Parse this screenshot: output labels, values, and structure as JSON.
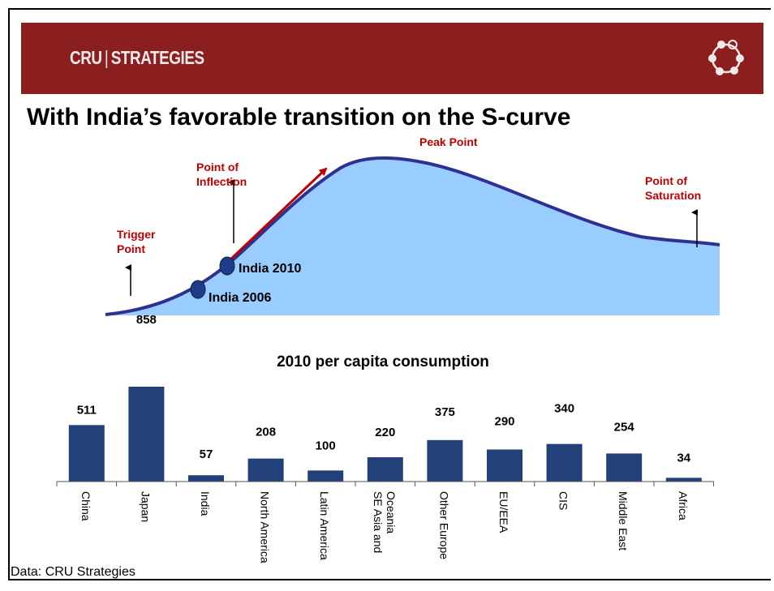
{
  "header": {
    "brand_left": "CRU",
    "brand_separator": "|",
    "brand_right": "STRATEGIES",
    "accent_color": "#8b1e1e",
    "icon": "network-circle-icon"
  },
  "title": "With India’s favorable transition on the S-curve",
  "scurve": {
    "labels": {
      "peak": "Peak Point",
      "inflection_line1": "Point of",
      "inflection_line2": "Inflection",
      "trigger_line1": "Trigger",
      "trigger_line2": "Point",
      "saturation_line1": "Point of",
      "saturation_line2": "Saturation",
      "india_2010": "India 2010",
      "india_2006": "India 2006"
    },
    "fill_color": "#99ccff",
    "line_color": "#2e3192",
    "label_color": "#c00000",
    "marker_color": "#1f3c88"
  },
  "footer": "Data: CRU Strategies",
  "chart_data": {
    "type": "bar",
    "title": "2010 per capita consumption",
    "categories": [
      "China",
      "Japan",
      "India",
      "North America",
      "Latin America",
      "SE Asia and Oceania",
      "Other Europe",
      "EU/EEA",
      "CIS",
      "Middle East",
      "Africa"
    ],
    "category_lines": [
      [
        "China"
      ],
      [
        "Japan"
      ],
      [
        "India"
      ],
      [
        "North America"
      ],
      [
        "Latin America"
      ],
      [
        "SE Asia and",
        "Oceania"
      ],
      [
        "Other Europe"
      ],
      [
        "EU/EEA"
      ],
      [
        "CIS"
      ],
      [
        "Middle East"
      ],
      [
        "Africa"
      ]
    ],
    "values": [
      511,
      858,
      57,
      208,
      100,
      220,
      375,
      290,
      340,
      254,
      34
    ],
    "xlabel": "",
    "ylabel": "",
    "bar_color": "#22407a",
    "grid": false,
    "legend": "none"
  }
}
